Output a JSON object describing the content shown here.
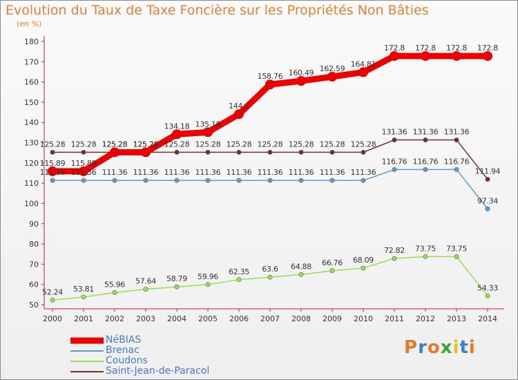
{
  "header": {
    "title": "Evolution du Taux de Taxe Foncière sur les Propriétés Non Bâties",
    "unit": "(en %)"
  },
  "brand": {
    "text": "Proxiti",
    "colors": [
      "#e8772a",
      "#3a7fd0",
      "#e8772a",
      "#3aa43a",
      "#e8c020",
      "#3a7fd0",
      "#e8772a"
    ]
  },
  "chart_data": {
    "type": "line",
    "title": "Evolution du Taux de Taxe Foncière sur les Propriétés Non Bâties",
    "ylabel": "(en %)",
    "xlabel": "",
    "x": [
      "2000",
      "2001",
      "2002",
      "2003",
      "2004",
      "2005",
      "2006",
      "2007",
      "2008",
      "2009",
      "2010",
      "2011",
      "2012",
      "2013",
      "2014"
    ],
    "ylim": [
      50,
      180
    ],
    "yticks": [
      50,
      60,
      70,
      80,
      90,
      100,
      110,
      120,
      130,
      140,
      150,
      160,
      170,
      180
    ],
    "grid": false,
    "legend_position": "bottom-left",
    "series": [
      {
        "name": "NéBIAS",
        "color": "#ee0000",
        "values": [
          115.89,
          115.89,
          125.28,
          125.28,
          134.18,
          135.18,
          144.1,
          158.76,
          160.49,
          162.59,
          164.81,
          172.8,
          172.8,
          172.8,
          172.8
        ],
        "labels": [
          "115.89",
          "115.89",
          "125.28",
          "125.28",
          "134.18",
          "135.18",
          "144.1",
          "158.76",
          "160.49",
          "162.59",
          "164.81",
          "172.8",
          "172.8",
          "172.8",
          "172.8"
        ]
      },
      {
        "name": "Brenac",
        "color": "#5a9ad6",
        "values": [
          111.36,
          111.36,
          111.36,
          111.36,
          111.36,
          111.36,
          111.36,
          111.36,
          111.36,
          111.36,
          111.36,
          116.76,
          116.76,
          116.76,
          97.34
        ],
        "labels": [
          "111.36",
          "111.36",
          "111.36",
          "111.36",
          "111.36",
          "111.36",
          "111.36",
          "111.36",
          "111.36",
          "111.36",
          "111.36",
          "116.76",
          "116.76",
          "116.76",
          "97.34"
        ]
      },
      {
        "name": "Coudons",
        "color": "#99dd55",
        "values": [
          52.24,
          53.81,
          55.96,
          57.64,
          58.79,
          59.96,
          62.35,
          63.6,
          64.88,
          66.76,
          68.09,
          72.82,
          73.75,
          73.75,
          54.33
        ],
        "labels": [
          "52.24",
          "53.81",
          "55.96",
          "57.64",
          "58.79",
          "59.96",
          "62.35",
          "63.6",
          "64.88",
          "66.76",
          "68.09",
          "72.82",
          "73.75",
          "73.75",
          "54.33"
        ]
      },
      {
        "name": "Saint-Jean-de-Paracol",
        "color": "#7a2a2a",
        "values": [
          125.28,
          125.28,
          125.28,
          125.28,
          125.28,
          125.28,
          125.28,
          125.28,
          125.28,
          125.28,
          125.28,
          131.36,
          131.36,
          131.36,
          111.94
        ],
        "labels": [
          "125.28",
          "125.28",
          "125.28",
          "125.28",
          "125.28",
          "125.28",
          "125.28",
          "125.28",
          "125.28",
          "125.28",
          "125.28",
          "131.36",
          "131.36",
          "131.36",
          "111.94"
        ]
      }
    ]
  }
}
